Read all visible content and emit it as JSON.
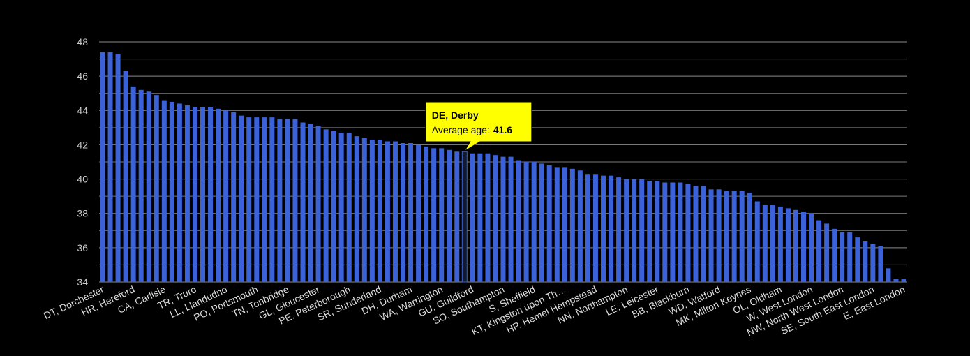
{
  "chart_data": {
    "type": "bar",
    "categories": [
      "DT, Dorchester",
      null,
      null,
      null,
      "HR, Hereford",
      null,
      null,
      null,
      "CA, Carlisle",
      null,
      null,
      null,
      "TR, Truro",
      null,
      null,
      null,
      "LL, Llandudno",
      null,
      null,
      null,
      "PO, Portsmouth",
      null,
      null,
      null,
      "TN, Tonbridge",
      null,
      null,
      null,
      "GL, Gloucester",
      null,
      null,
      null,
      "PE, Peterborough",
      null,
      null,
      null,
      "SR, Sunderland",
      null,
      null,
      null,
      "DH, Durham",
      null,
      null,
      null,
      "WA, Warrington",
      null,
      null,
      "DE, Derby",
      "GU, Guildford",
      null,
      null,
      null,
      "SO, Southampton",
      null,
      null,
      null,
      "S, Sheffield",
      null,
      null,
      null,
      "KT, Kingston upon Th…",
      null,
      null,
      null,
      "HP, Hemel Hempstead",
      null,
      null,
      null,
      "NN, Northampton",
      null,
      null,
      null,
      "LE, Leicester",
      null,
      null,
      null,
      "BB, Blackburn",
      null,
      null,
      null,
      "WD, Watford",
      null,
      null,
      null,
      "MK, Milton Keynes",
      null,
      null,
      null,
      "OL, Oldham",
      null,
      null,
      null,
      "W, West London",
      null,
      null,
      null,
      "NW, North West London",
      null,
      null,
      null,
      "SE, South East London",
      null,
      null,
      null,
      "E, East London"
    ],
    "values": [
      47.4,
      47.4,
      47.3,
      46.3,
      45.4,
      45.2,
      45.1,
      44.9,
      44.6,
      44.5,
      44.4,
      44.3,
      44.2,
      44.2,
      44.2,
      44.1,
      44.0,
      43.9,
      43.7,
      43.6,
      43.6,
      43.6,
      43.6,
      43.5,
      43.5,
      43.5,
      43.3,
      43.2,
      43.1,
      42.9,
      42.8,
      42.7,
      42.7,
      42.5,
      42.4,
      42.3,
      42.3,
      42.2,
      42.2,
      42.1,
      42.1,
      42.0,
      41.9,
      41.8,
      41.8,
      41.7,
      41.6,
      41.6,
      41.5,
      41.5,
      41.5,
      41.4,
      41.3,
      41.3,
      41.1,
      41.0,
      41.0,
      40.9,
      40.8,
      40.7,
      40.7,
      40.6,
      40.5,
      40.3,
      40.3,
      40.2,
      40.2,
      40.1,
      40.0,
      40.0,
      40.0,
      39.9,
      39.9,
      39.8,
      39.8,
      39.8,
      39.7,
      39.6,
      39.6,
      39.4,
      39.4,
      39.3,
      39.3,
      39.3,
      39.2,
      38.7,
      38.5,
      38.5,
      38.4,
      38.3,
      38.2,
      38.1,
      38.0,
      37.6,
      37.4,
      37.1,
      36.9,
      36.9,
      36.6,
      36.4,
      36.2,
      36.1,
      34.8,
      34.2,
      34.2
    ],
    "color": "#3b62d9",
    "ylim": [
      34,
      48
    ],
    "yticks": [
      34,
      36,
      38,
      40,
      42,
      44,
      46,
      48
    ],
    "yminorticks": [
      35,
      37,
      39,
      41,
      43,
      45,
      47
    ],
    "grid": true,
    "tooltip": {
      "label": "Average age:"
    }
  }
}
